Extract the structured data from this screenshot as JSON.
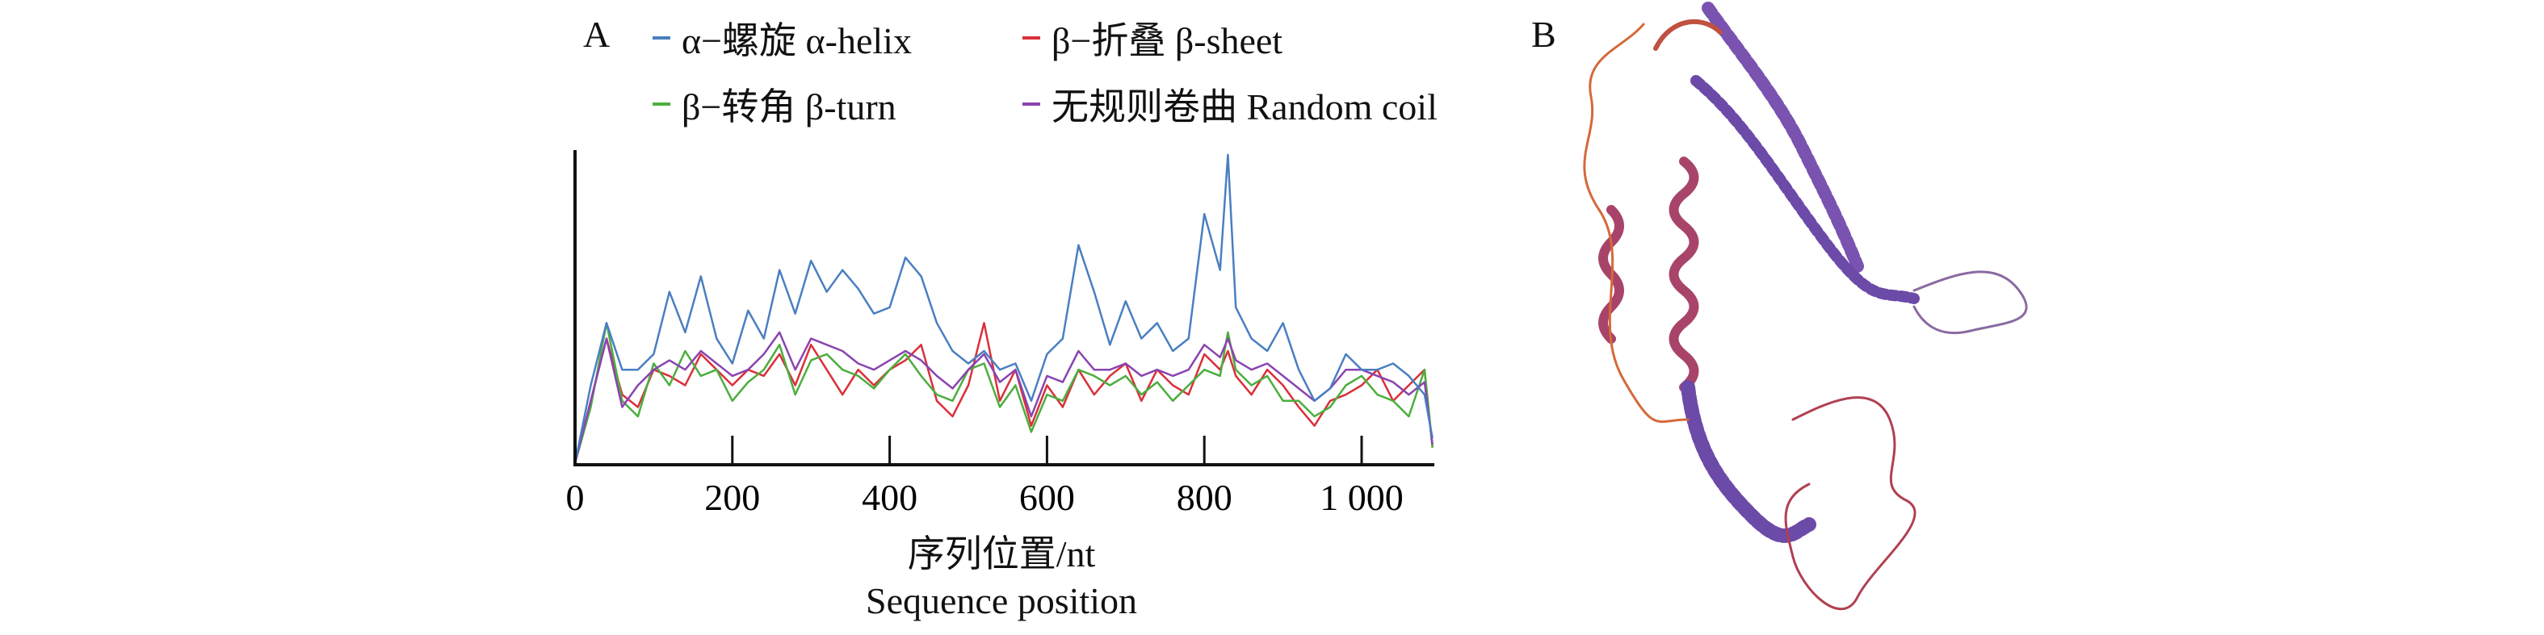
{
  "panels": {
    "a_label": "A",
    "b_label": "B"
  },
  "legend": [
    {
      "label": "α−螺旋 α-helix",
      "color": "#4a7fc1"
    },
    {
      "label": "β−折叠 β-sheet",
      "color": "#d9303b"
    },
    {
      "label": "β−转角 β-turn",
      "color": "#4cae3e"
    },
    {
      "label": "无规则卷曲 Random coil",
      "color": "#8a44b0"
    }
  ],
  "protein_structure": {
    "description": "3D ribbon model of protein tertiary structure",
    "colors": [
      "#b03a5a",
      "#6a4aa8",
      "#d44a2a"
    ]
  },
  "chart_data": {
    "type": "line",
    "title": "",
    "xlabel": "序列位置/nt",
    "xlabel_en": "Sequence position",
    "ylabel": "",
    "xlim": [
      0,
      1100
    ],
    "ylim": [
      0,
      1
    ],
    "xticks": [
      0,
      200,
      400,
      600,
      800,
      1000
    ],
    "xtick_labels": [
      "0",
      "200",
      "400",
      "600",
      "800",
      "1 000"
    ],
    "grid": false,
    "legend_position": "top",
    "x": [
      0,
      20,
      40,
      60,
      80,
      100,
      120,
      140,
      160,
      180,
      200,
      220,
      240,
      260,
      280,
      300,
      320,
      340,
      360,
      380,
      400,
      420,
      440,
      460,
      480,
      500,
      520,
      540,
      560,
      580,
      600,
      620,
      640,
      660,
      680,
      700,
      720,
      740,
      760,
      780,
      800,
      820,
      830,
      840,
      860,
      880,
      900,
      920,
      940,
      960,
      980,
      1000,
      1020,
      1040,
      1060,
      1080,
      1090
    ],
    "series": [
      {
        "name": "α-helix",
        "color": "#4a7fc1",
        "values": [
          0.0,
          0.25,
          0.45,
          0.3,
          0.3,
          0.35,
          0.55,
          0.42,
          0.6,
          0.4,
          0.32,
          0.49,
          0.4,
          0.62,
          0.48,
          0.65,
          0.55,
          0.62,
          0.56,
          0.48,
          0.5,
          0.66,
          0.6,
          0.45,
          0.36,
          0.32,
          0.36,
          0.3,
          0.32,
          0.2,
          0.35,
          0.4,
          0.7,
          0.55,
          0.38,
          0.52,
          0.4,
          0.45,
          0.36,
          0.4,
          0.8,
          0.62,
          0.99,
          0.5,
          0.4,
          0.36,
          0.45,
          0.3,
          0.2,
          0.24,
          0.35,
          0.3,
          0.3,
          0.32,
          0.28,
          0.22,
          0.08
        ]
      },
      {
        "name": "β-sheet",
        "color": "#d9303b",
        "values": [
          0.0,
          0.2,
          0.4,
          0.22,
          0.18,
          0.3,
          0.28,
          0.25,
          0.35,
          0.3,
          0.25,
          0.3,
          0.28,
          0.35,
          0.25,
          0.38,
          0.3,
          0.22,
          0.3,
          0.25,
          0.3,
          0.33,
          0.38,
          0.2,
          0.15,
          0.25,
          0.45,
          0.2,
          0.3,
          0.12,
          0.25,
          0.18,
          0.3,
          0.22,
          0.28,
          0.32,
          0.2,
          0.3,
          0.25,
          0.22,
          0.35,
          0.3,
          0.36,
          0.28,
          0.22,
          0.3,
          0.25,
          0.18,
          0.12,
          0.2,
          0.22,
          0.25,
          0.3,
          0.2,
          0.25,
          0.3,
          0.05
        ]
      },
      {
        "name": "β-turn",
        "color": "#4cae3e",
        "values": [
          0.0,
          0.18,
          0.45,
          0.2,
          0.15,
          0.32,
          0.25,
          0.36,
          0.28,
          0.3,
          0.2,
          0.26,
          0.3,
          0.38,
          0.22,
          0.33,
          0.35,
          0.3,
          0.28,
          0.24,
          0.3,
          0.35,
          0.28,
          0.22,
          0.2,
          0.3,
          0.32,
          0.18,
          0.25,
          0.1,
          0.22,
          0.2,
          0.3,
          0.28,
          0.25,
          0.28,
          0.22,
          0.26,
          0.2,
          0.25,
          0.3,
          0.28,
          0.42,
          0.3,
          0.25,
          0.28,
          0.2,
          0.2,
          0.15,
          0.18,
          0.25,
          0.28,
          0.22,
          0.2,
          0.15,
          0.3,
          0.05
        ]
      },
      {
        "name": "Random coil",
        "color": "#8a44b0",
        "values": [
          0.0,
          0.2,
          0.4,
          0.18,
          0.25,
          0.3,
          0.33,
          0.3,
          0.36,
          0.32,
          0.28,
          0.3,
          0.35,
          0.42,
          0.3,
          0.4,
          0.38,
          0.36,
          0.32,
          0.3,
          0.33,
          0.36,
          0.33,
          0.28,
          0.24,
          0.3,
          0.35,
          0.26,
          0.3,
          0.15,
          0.28,
          0.26,
          0.36,
          0.3,
          0.3,
          0.32,
          0.28,
          0.3,
          0.28,
          0.3,
          0.38,
          0.34,
          0.4,
          0.33,
          0.3,
          0.32,
          0.28,
          0.24,
          0.2,
          0.24,
          0.3,
          0.3,
          0.28,
          0.26,
          0.22,
          0.26,
          0.06
        ]
      }
    ]
  }
}
